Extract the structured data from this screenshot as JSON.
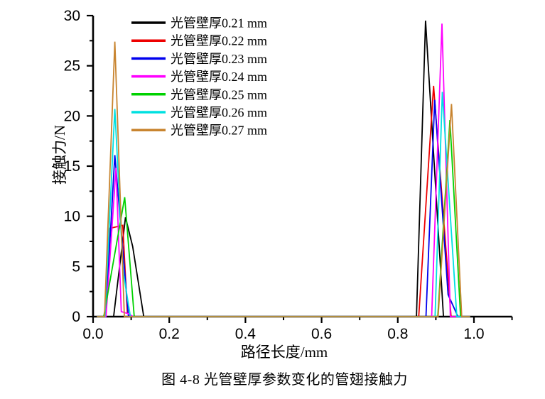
{
  "figure": {
    "caption": "图 4-8  光管壁厚参数变化的管翅接触力"
  },
  "chart_data": {
    "type": "line",
    "title": "",
    "xlabel": "路径长度/mm",
    "ylabel": "接触力/N",
    "xlim": [
      0,
      1.1
    ],
    "ylim": [
      0,
      30
    ],
    "grid": false,
    "legend_position": "top-left-inside",
    "x_tick_values": [
      0.0,
      0.2,
      0.4,
      0.6,
      0.8,
      1.0
    ],
    "x_tick_labels": [
      "0.0",
      "0.2",
      "0.4",
      "0.6",
      "0.8",
      "1.0"
    ],
    "x_minor_tick_values": [
      0.1,
      0.3,
      0.5,
      0.7,
      0.9,
      1.1
    ],
    "y_tick_values": [
      0,
      5,
      10,
      15,
      20,
      25,
      30
    ],
    "y_tick_labels": [
      "0",
      "5",
      "10",
      "15",
      "20",
      "25",
      "30"
    ],
    "y_minor_tick_values": [
      2.5,
      7.5,
      12.5,
      17.5,
      22.5,
      27.5
    ],
    "axis_color": "#000000",
    "series": [
      {
        "name": "光管壁厚0.21 mm",
        "color": "#000000",
        "points": [
          [
            0.01,
            0
          ],
          [
            0.054,
            0
          ],
          [
            0.085,
            9.9
          ],
          [
            0.104,
            7.0
          ],
          [
            0.133,
            0
          ],
          [
            0.849,
            0
          ],
          [
            0.873,
            29.5
          ],
          [
            0.92,
            0
          ],
          [
            1.09,
            0
          ]
        ]
      },
      {
        "name": "光管壁厚0.22 mm",
        "color": "#EE0000",
        "points": [
          [
            0.01,
            0
          ],
          [
            0.031,
            0
          ],
          [
            0.044,
            8.8
          ],
          [
            0.078,
            9.1
          ],
          [
            0.09,
            0.4
          ],
          [
            0.1,
            0
          ],
          [
            0.855,
            0
          ],
          [
            0.894,
            23.0
          ],
          [
            0.94,
            0
          ],
          [
            0.99,
            0
          ]
        ]
      },
      {
        "name": "光管壁厚0.23 mm",
        "color": "#0000EE",
        "points": [
          [
            0.01,
            0
          ],
          [
            0.033,
            0
          ],
          [
            0.057,
            16.1
          ],
          [
            0.093,
            0
          ],
          [
            0.874,
            0
          ],
          [
            0.897,
            21.6
          ],
          [
            0.932,
            2.2
          ],
          [
            0.958,
            0
          ],
          [
            0.99,
            0
          ]
        ]
      },
      {
        "name": "光管壁厚0.24 mm",
        "color": "#FF00FF",
        "points": [
          [
            0.01,
            0
          ],
          [
            0.034,
            0
          ],
          [
            0.06,
            14.8
          ],
          [
            0.074,
            0.5
          ],
          [
            0.092,
            0.3
          ],
          [
            0.106,
            0
          ],
          [
            0.889,
            0
          ],
          [
            0.916,
            29.2
          ],
          [
            0.938,
            0
          ],
          [
            0.99,
            0
          ]
        ]
      },
      {
        "name": "光管壁厚0.25 mm",
        "color": "#00D200",
        "points": [
          [
            0.01,
            0
          ],
          [
            0.028,
            0
          ],
          [
            0.083,
            11.9
          ],
          [
            0.108,
            0
          ],
          [
            0.905,
            0
          ],
          [
            0.937,
            19.6
          ],
          [
            0.965,
            0
          ],
          [
            0.99,
            0
          ]
        ]
      },
      {
        "name": "光管壁厚0.26 mm",
        "color": "#00E0E0",
        "points": [
          [
            0.01,
            0
          ],
          [
            0.031,
            0
          ],
          [
            0.057,
            20.7
          ],
          [
            0.079,
            4.5
          ],
          [
            0.098,
            0
          ],
          [
            0.898,
            0
          ],
          [
            0.917,
            22.4
          ],
          [
            0.955,
            0
          ],
          [
            0.99,
            0
          ]
        ]
      },
      {
        "name": "光管壁厚0.27 mm",
        "color": "#C8842F",
        "points": [
          [
            0.01,
            0
          ],
          [
            0.03,
            0
          ],
          [
            0.057,
            27.4
          ],
          [
            0.082,
            0
          ],
          [
            0.906,
            0
          ],
          [
            0.941,
            21.2
          ],
          [
            0.968,
            0
          ],
          [
            0.99,
            0
          ]
        ]
      }
    ]
  }
}
